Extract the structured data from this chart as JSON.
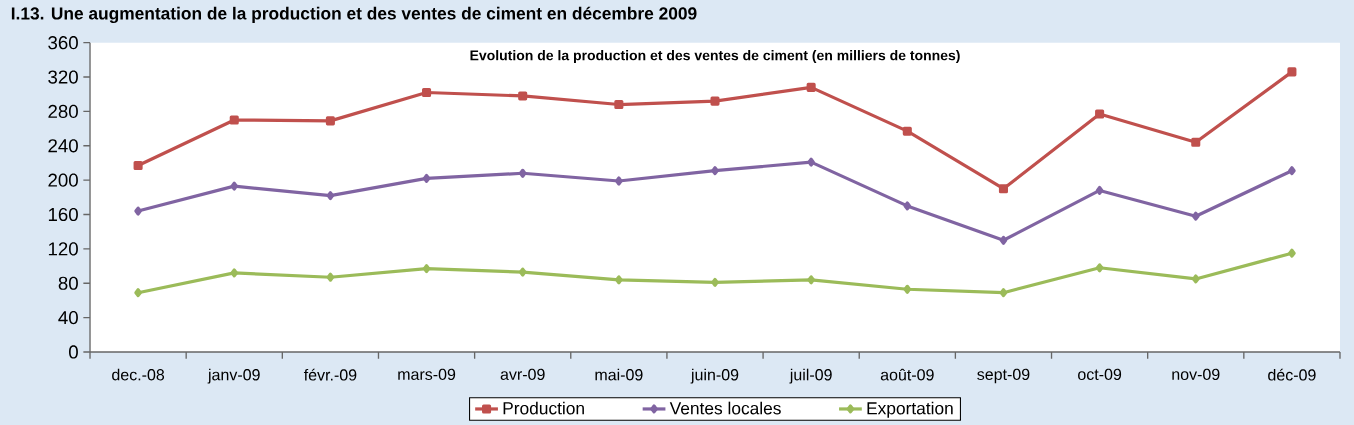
{
  "chart_data": {
    "type": "line",
    "title": "Evolution de la production et des ventes de ciment (en milliers de tonnes)",
    "annotations": [
      "I.13. Une augmentation de la production et des ventes de ciment en décembre 2009"
    ],
    "categories": [
      "dec.-08",
      "janv-09",
      "févr.-09",
      "mars-09",
      "avr-09",
      "mai-09",
      "juin-09",
      "juil-09",
      "août-09",
      "sept-09",
      "oct-09",
      "nov-09",
      "déc-09"
    ],
    "series": [
      {
        "name": "Production",
        "color": "#c0504d",
        "marker": "square",
        "values": [
          217,
          270,
          269,
          302,
          298,
          288,
          292,
          308,
          257,
          190,
          277,
          244,
          326
        ]
      },
      {
        "name": "Ventes locales",
        "color": "#8064a2",
        "marker": "diamond",
        "values": [
          164,
          193,
          182,
          202,
          208,
          199,
          211,
          221,
          170,
          130,
          188,
          158,
          211
        ]
      },
      {
        "name": "Exportation",
        "color": "#9bbb59",
        "marker": "diamond",
        "values": [
          69,
          92,
          87,
          97,
          93,
          84,
          81,
          84,
          73,
          69,
          98,
          85,
          115
        ]
      }
    ],
    "ylim": [
      0,
      360
    ],
    "yticks": [
      0,
      40,
      80,
      120,
      160,
      200,
      240,
      280,
      320,
      360
    ],
    "grid": false,
    "legend": "bottom",
    "line_style": "solid"
  }
}
